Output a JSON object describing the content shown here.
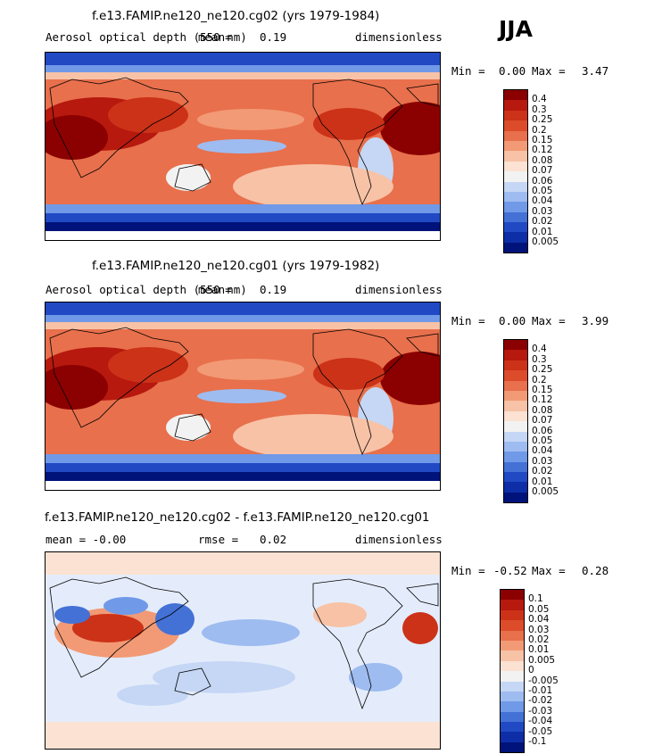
{
  "season": "JJA",
  "panels": [
    {
      "title": "f.e13.FAMIP.ne120_ne120.cg02 (yrs 1979-1984)",
      "left": "Aerosol optical depth (550 nm)",
      "center": "mean=",
      "center_value": "0.19",
      "right": "dimensionless",
      "min_label": "Min =",
      "min": "0.00",
      "max_label": "Max =",
      "max": "3.47",
      "levels": [
        "0.4",
        "0.3",
        "0.25",
        "0.2",
        "0.15",
        "0.12",
        "0.08",
        "0.07",
        "0.06",
        "0.05",
        "0.04",
        "0.03",
        "0.02",
        "0.01",
        "0.005"
      ],
      "colors": [
        "#8b0000",
        "#b7190e",
        "#cc3218",
        "#dc4c2a",
        "#e8704c",
        "#f29a75",
        "#f8c2a6",
        "#fbe2d2",
        "#f2f2f2",
        "#c5d7f5",
        "#9ebcf0",
        "#7099e8",
        "#4471d6",
        "#2149c3",
        "#0d2ea6",
        "#00137a"
      ]
    },
    {
      "title": "f.e13.FAMIP.ne120_ne120.cg01 (yrs 1979-1982)",
      "left": "Aerosol optical depth (550 nm)",
      "center": "mean=",
      "center_value": "0.19",
      "right": "dimensionless",
      "min_label": "Min =",
      "min": "0.00",
      "max_label": "Max =",
      "max": "3.99",
      "levels": [
        "0.4",
        "0.3",
        "0.25",
        "0.2",
        "0.15",
        "0.12",
        "0.08",
        "0.07",
        "0.06",
        "0.05",
        "0.04",
        "0.03",
        "0.02",
        "0.01",
        "0.005"
      ],
      "colors": [
        "#8b0000",
        "#b7190e",
        "#cc3218",
        "#dc4c2a",
        "#e8704c",
        "#f29a75",
        "#f8c2a6",
        "#fbe2d2",
        "#f2f2f2",
        "#c5d7f5",
        "#9ebcf0",
        "#7099e8",
        "#4471d6",
        "#2149c3",
        "#0d2ea6",
        "#00137a"
      ]
    },
    {
      "title": "f.e13.FAMIP.ne120_ne120.cg02 - f.e13.FAMIP.ne120_ne120.cg01",
      "left": "mean =  -0.00",
      "center": "rmse =",
      "center_value": "0.02",
      "right": "dimensionless",
      "min_label": "Min =",
      "min": "-0.52",
      "max_label": "Max =",
      "max": "0.28",
      "levels": [
        "0.1",
        "0.05",
        "0.04",
        "0.03",
        "0.02",
        "0.01",
        "0.005",
        "0",
        "-0.005",
        "-0.01",
        "-0.02",
        "-0.03",
        "-0.04",
        "-0.05",
        "-0.1"
      ],
      "colors": [
        "#8b0000",
        "#b7190e",
        "#cc3218",
        "#dc4c2a",
        "#e8704c",
        "#f29a75",
        "#f8c2a6",
        "#fbe2d2",
        "#f2f2f2",
        "#c5d7f5",
        "#9ebcf0",
        "#7099e8",
        "#4471d6",
        "#2149c3",
        "#0d2ea6",
        "#00137a"
      ]
    }
  ]
}
